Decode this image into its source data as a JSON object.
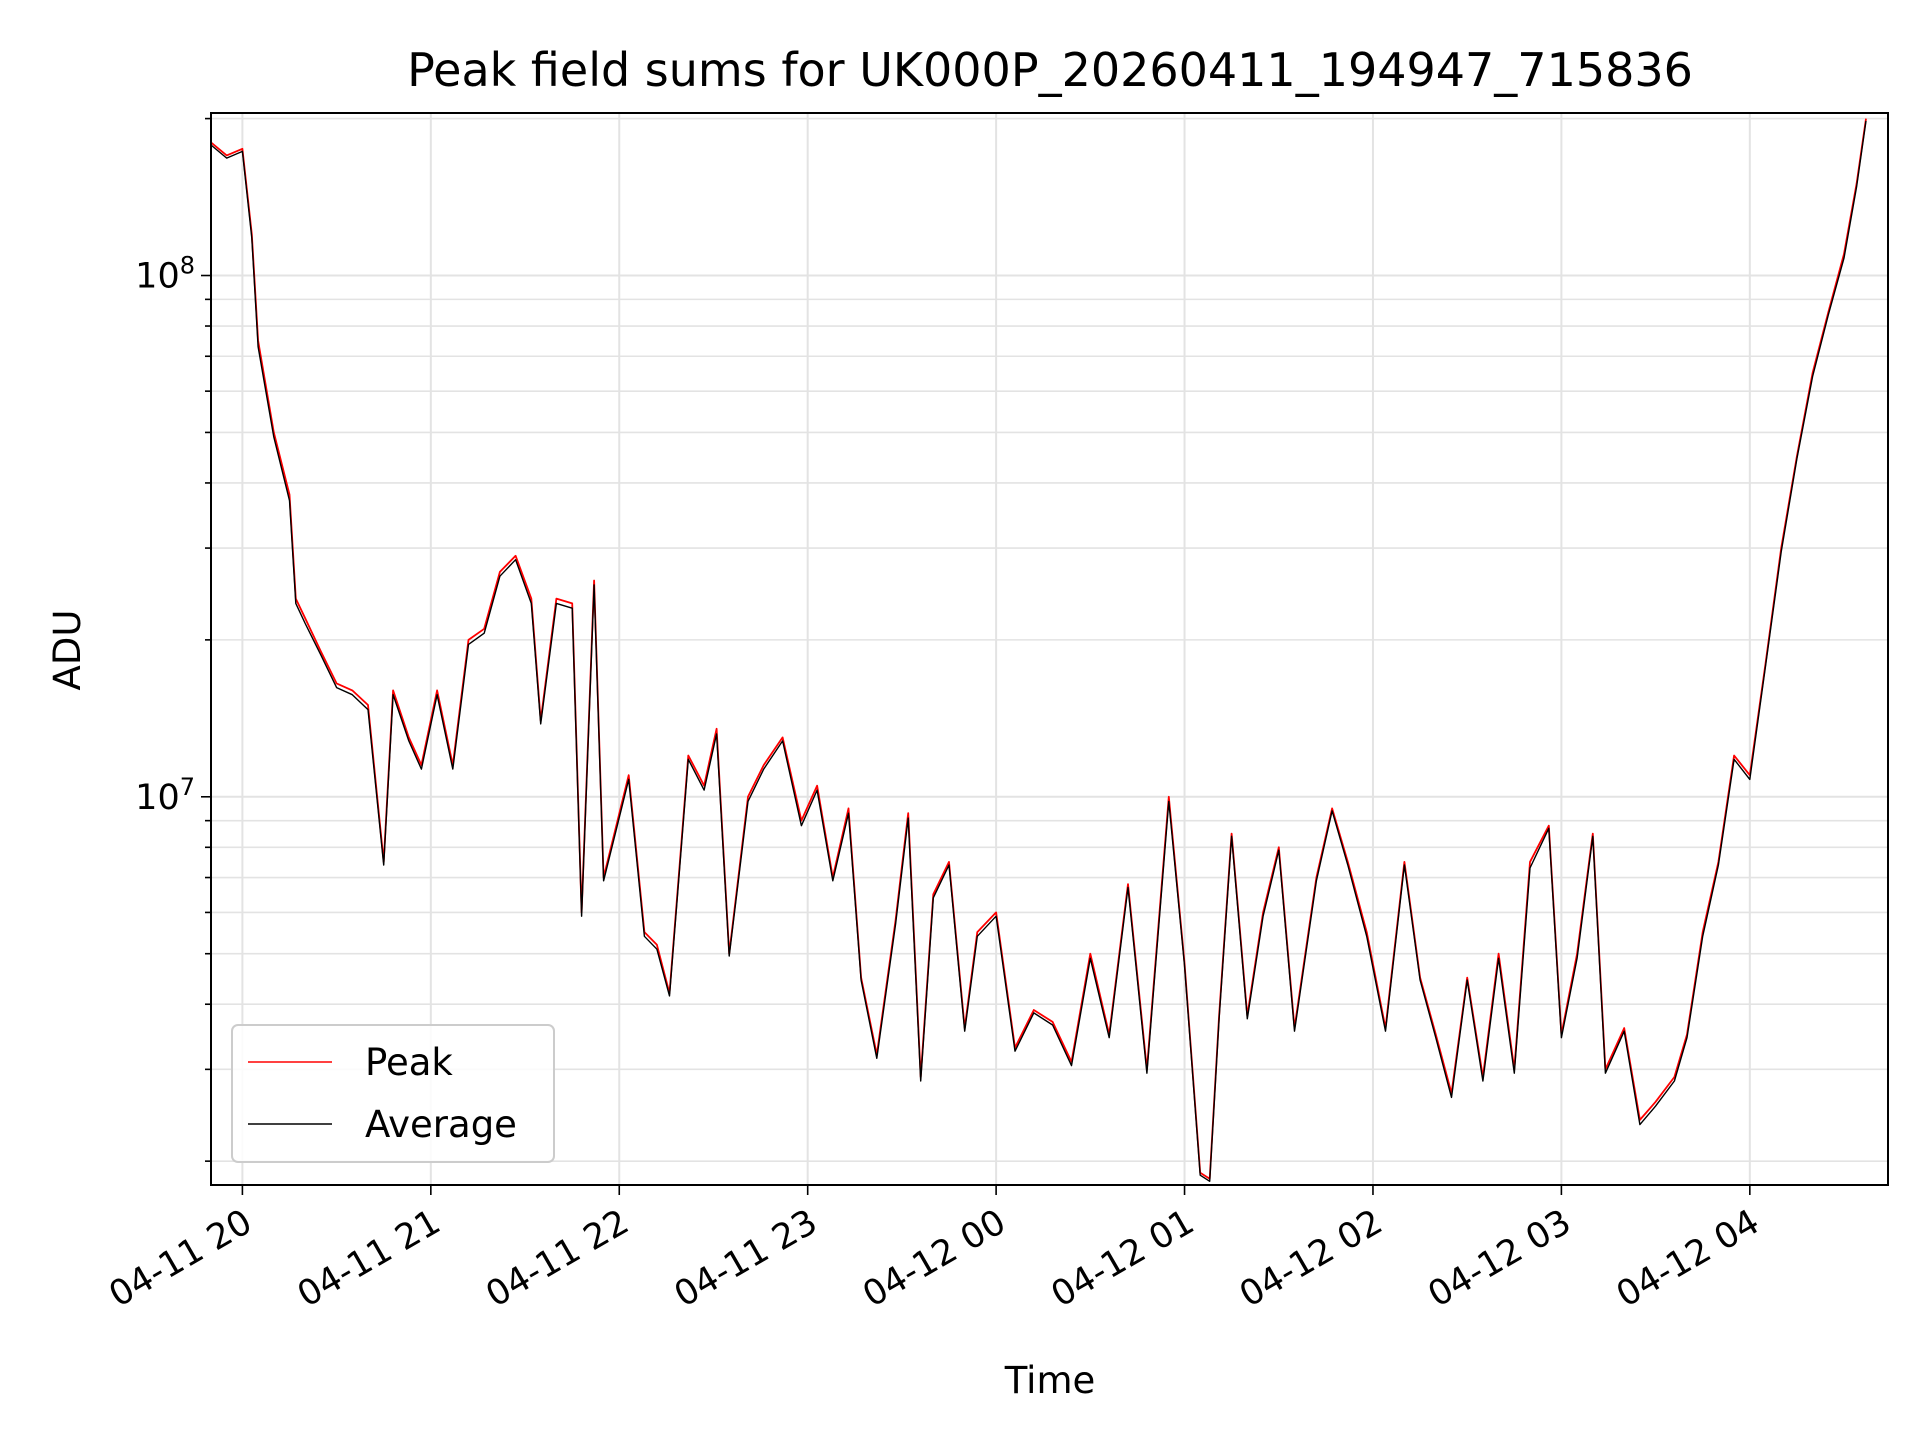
{
  "chart_data": {
    "type": "line",
    "title": "Peak field sums for UK000P_20260411_194947_715836",
    "xlabel": "Time",
    "ylabel": "ADU",
    "yscale": "log",
    "ylim": [
      1800000,
      205000000
    ],
    "xlim": [
      "2026-04-11 19:50",
      "2026-04-12 04:44"
    ],
    "grid": true,
    "legend": "lower-left",
    "x_tick_labels": [
      "04-11 20",
      "04-11 21",
      "04-11 22",
      "04-11 23",
      "04-12 00",
      "04-12 01",
      "04-12 02",
      "04-12 03",
      "04-12 04"
    ],
    "x_tick_times": [
      "2026-04-11 20:00",
      "2026-04-11 21:00",
      "2026-04-11 22:00",
      "2026-04-11 23:00",
      "2026-04-12 00:00",
      "2026-04-12 01:00",
      "2026-04-12 02:00",
      "2026-04-12 03:00",
      "2026-04-12 04:00"
    ],
    "y_tick_labels": [
      {
        "base": "10",
        "exp": "7",
        "value": 10000000
      },
      {
        "base": "10",
        "exp": "8",
        "value": 100000000
      }
    ],
    "series": [
      {
        "name": "Peak",
        "color": "#ff0000",
        "points": [
          [
            "2026-04-11 19:50",
            180000000.0
          ],
          [
            "2026-04-11 19:55",
            170000000.0
          ],
          [
            "2026-04-11 20:00",
            175000000.0
          ],
          [
            "2026-04-11 20:03",
            120000000.0
          ],
          [
            "2026-04-11 20:05",
            75000000.0
          ],
          [
            "2026-04-11 20:10",
            50000000.0
          ],
          [
            "2026-04-11 20:15",
            38000000.0
          ],
          [
            "2026-04-11 20:17",
            24000000.0
          ],
          [
            "2026-04-11 20:20",
            22000000.0
          ],
          [
            "2026-04-11 20:25",
            19000000.0
          ],
          [
            "2026-04-11 20:30",
            16500000.0
          ],
          [
            "2026-04-11 20:35",
            16000000.0
          ],
          [
            "2026-04-11 20:40",
            15000000.0
          ],
          [
            "2026-04-11 20:45",
            7500000.0
          ],
          [
            "2026-04-11 20:48",
            16000000.0
          ],
          [
            "2026-04-11 20:53",
            13000000.0
          ],
          [
            "2026-04-11 20:57",
            11500000.0
          ],
          [
            "2026-04-11 21:02",
            16000000.0
          ],
          [
            "2026-04-11 21:07",
            11500000.0
          ],
          [
            "2026-04-11 21:12",
            20000000.0
          ],
          [
            "2026-04-11 21:17",
            21000000.0
          ],
          [
            "2026-04-11 21:22",
            27000000.0
          ],
          [
            "2026-04-11 21:27",
            29000000.0
          ],
          [
            "2026-04-11 21:32",
            24000000.0
          ],
          [
            "2026-04-11 21:35",
            14000000.0
          ],
          [
            "2026-04-11 21:40",
            24000000.0
          ],
          [
            "2026-04-11 21:45",
            23500000.0
          ],
          [
            "2026-04-11 21:48",
            6000000.0
          ],
          [
            "2026-04-11 21:52",
            26000000.0
          ],
          [
            "2026-04-11 21:55",
            7000000.0
          ],
          [
            "2026-04-11 22:03",
            11000000.0
          ],
          [
            "2026-04-11 22:08",
            5500000.0
          ],
          [
            "2026-04-11 22:12",
            5200000.0
          ],
          [
            "2026-04-11 22:16",
            4200000.0
          ],
          [
            "2026-04-11 22:22",
            12000000.0
          ],
          [
            "2026-04-11 22:27",
            10500000.0
          ],
          [
            "2026-04-11 22:31",
            13500000.0
          ],
          [
            "2026-04-11 22:35",
            5000000.0
          ],
          [
            "2026-04-11 22:41",
            10000000.0
          ],
          [
            "2026-04-11 22:46",
            11500000.0
          ],
          [
            "2026-04-11 22:52",
            13000000.0
          ],
          [
            "2026-04-11 22:58",
            9000000.0
          ],
          [
            "2026-04-11 23:03",
            10500000.0
          ],
          [
            "2026-04-11 23:08",
            7000000.0
          ],
          [
            "2026-04-11 23:13",
            9500000.0
          ],
          [
            "2026-04-11 23:17",
            4500000.0
          ],
          [
            "2026-04-11 23:22",
            3200000.0
          ],
          [
            "2026-04-11 23:28",
            5800000.0
          ],
          [
            "2026-04-11 23:32",
            9300000.0
          ],
          [
            "2026-04-11 23:36",
            2900000.0
          ],
          [
            "2026-04-11 23:40",
            6500000.0
          ],
          [
            "2026-04-11 23:45",
            7500000.0
          ],
          [
            "2026-04-11 23:50",
            3600000.0
          ],
          [
            "2026-04-11 23:54",
            5500000.0
          ],
          [
            "2026-04-12 00:00",
            6000000.0
          ],
          [
            "2026-04-12 00:06",
            3300000.0
          ],
          [
            "2026-04-12 00:12",
            3900000.0
          ],
          [
            "2026-04-12 00:18",
            3700000.0
          ],
          [
            "2026-04-12 00:24",
            3100000.0
          ],
          [
            "2026-04-12 00:30",
            5000000.0
          ],
          [
            "2026-04-12 00:36",
            3500000.0
          ],
          [
            "2026-04-12 00:42",
            6800000.0
          ],
          [
            "2026-04-12 00:48",
            3000000.0
          ],
          [
            "2026-04-12 00:55",
            10000000.0
          ],
          [
            "2026-04-12 01:00",
            4800000.0
          ],
          [
            "2026-04-12 01:05",
            1900000.0
          ],
          [
            "2026-04-12 01:08",
            1850000.0
          ],
          [
            "2026-04-12 01:11",
            3800000.0
          ],
          [
            "2026-04-12 01:15",
            8500000.0
          ],
          [
            "2026-04-12 01:20",
            3800000.0
          ],
          [
            "2026-04-12 01:25",
            6000000.0
          ],
          [
            "2026-04-12 01:30",
            8000000.0
          ],
          [
            "2026-04-12 01:35",
            3600000.0
          ],
          [
            "2026-04-12 01:42",
            7000000.0
          ],
          [
            "2026-04-12 01:47",
            9500000.0
          ],
          [
            "2026-04-12 01:52",
            7500000.0
          ],
          [
            "2026-04-12 01:58",
            5500000.0
          ],
          [
            "2026-04-12 02:04",
            3600000.0
          ],
          [
            "2026-04-12 02:10",
            7500000.0
          ],
          [
            "2026-04-12 02:15",
            4500000.0
          ],
          [
            "2026-04-12 02:20",
            3500000.0
          ],
          [
            "2026-04-12 02:25",
            2700000.0
          ],
          [
            "2026-04-12 02:30",
            4500000.0
          ],
          [
            "2026-04-12 02:35",
            2900000.0
          ],
          [
            "2026-04-12 02:40",
            5000000.0
          ],
          [
            "2026-04-12 02:45",
            3000000.0
          ],
          [
            "2026-04-12 02:50",
            7500000.0
          ],
          [
            "2026-04-12 02:56",
            8800000.0
          ],
          [
            "2026-04-12 03:00",
            3500000.0
          ],
          [
            "2026-04-12 03:05",
            5000000.0
          ],
          [
            "2026-04-12 03:10",
            8500000.0
          ],
          [
            "2026-04-12 03:14",
            3000000.0
          ],
          [
            "2026-04-12 03:20",
            3600000.0
          ],
          [
            "2026-04-12 03:25",
            2400000.0
          ],
          [
            "2026-04-12 03:30",
            2600000.0
          ],
          [
            "2026-04-12 03:36",
            2900000.0
          ],
          [
            "2026-04-12 03:40",
            3500000.0
          ],
          [
            "2026-04-12 03:45",
            5500000.0
          ],
          [
            "2026-04-12 03:50",
            7500000.0
          ],
          [
            "2026-04-12 03:55",
            12000000.0
          ],
          [
            "2026-04-12 04:00",
            11000000.0
          ],
          [
            "2026-04-12 04:05",
            18000000.0
          ],
          [
            "2026-04-12 04:10",
            30000000.0
          ],
          [
            "2026-04-12 04:15",
            45000000.0
          ],
          [
            "2026-04-12 04:20",
            65000000.0
          ],
          [
            "2026-04-12 04:25",
            85000000.0
          ],
          [
            "2026-04-12 04:30",
            110000000.0
          ],
          [
            "2026-04-12 04:34",
            150000000.0
          ],
          [
            "2026-04-12 04:37",
            200000000.0
          ]
        ]
      },
      {
        "name": "Average",
        "color": "#000000",
        "points": [
          [
            "2026-04-11 19:50",
            178000000.0
          ],
          [
            "2026-04-11 19:55",
            168000000.0
          ],
          [
            "2026-04-11 20:00",
            173000000.0
          ],
          [
            "2026-04-11 20:03",
            118000000.0
          ],
          [
            "2026-04-11 20:05",
            73000000.0
          ],
          [
            "2026-04-11 20:10",
            49000000.0
          ],
          [
            "2026-04-11 20:15",
            37000000.0
          ],
          [
            "2026-04-11 20:17",
            23500000.0
          ],
          [
            "2026-04-11 20:20",
            21500000.0
          ],
          [
            "2026-04-11 20:25",
            18700000.0
          ],
          [
            "2026-04-11 20:30",
            16200000.0
          ],
          [
            "2026-04-11 20:35",
            15700000.0
          ],
          [
            "2026-04-11 20:40",
            14700000.0
          ],
          [
            "2026-04-11 20:45",
            7400000.0
          ],
          [
            "2026-04-11 20:48",
            15700000.0
          ],
          [
            "2026-04-11 20:53",
            12800000.0
          ],
          [
            "2026-04-11 20:57",
            11300000.0
          ],
          [
            "2026-04-11 21:02",
            15700000.0
          ],
          [
            "2026-04-11 21:07",
            11300000.0
          ],
          [
            "2026-04-11 21:12",
            19600000.0
          ],
          [
            "2026-04-11 21:17",
            20600000.0
          ],
          [
            "2026-04-11 21:22",
            26500000.0
          ],
          [
            "2026-04-11 21:27",
            28500000.0
          ],
          [
            "2026-04-11 21:32",
            23500000.0
          ],
          [
            "2026-04-11 21:35",
            13800000.0
          ],
          [
            "2026-04-11 21:40",
            23500000.0
          ],
          [
            "2026-04-11 21:45",
            23000000.0
          ],
          [
            "2026-04-11 21:48",
            5900000.0
          ],
          [
            "2026-04-11 21:52",
            25500000.0
          ],
          [
            "2026-04-11 21:55",
            6900000.0
          ],
          [
            "2026-04-11 22:03",
            10800000.0
          ],
          [
            "2026-04-11 22:08",
            5400000.0
          ],
          [
            "2026-04-11 22:12",
            5100000.0
          ],
          [
            "2026-04-11 22:16",
            4150000.0
          ],
          [
            "2026-04-11 22:22",
            11800000.0
          ],
          [
            "2026-04-11 22:27",
            10300000.0
          ],
          [
            "2026-04-11 22:31",
            13200000.0
          ],
          [
            "2026-04-11 22:35",
            4950000.0
          ],
          [
            "2026-04-11 22:41",
            9800000.0
          ],
          [
            "2026-04-11 22:46",
            11300000.0
          ],
          [
            "2026-04-11 22:52",
            12800000.0
          ],
          [
            "2026-04-11 22:58",
            8800000.0
          ],
          [
            "2026-04-11 23:03",
            10300000.0
          ],
          [
            "2026-04-11 23:08",
            6900000.0
          ],
          [
            "2026-04-11 23:13",
            9300000.0
          ],
          [
            "2026-04-11 23:17",
            4450000.0
          ],
          [
            "2026-04-11 23:22",
            3150000.0
          ],
          [
            "2026-04-11 23:28",
            5700000.0
          ],
          [
            "2026-04-11 23:32",
            9100000.0
          ],
          [
            "2026-04-11 23:36",
            2850000.0
          ],
          [
            "2026-04-11 23:40",
            6400000.0
          ],
          [
            "2026-04-11 23:45",
            7400000.0
          ],
          [
            "2026-04-11 23:50",
            3550000.0
          ],
          [
            "2026-04-11 23:54",
            5400000.0
          ],
          [
            "2026-04-12 00:00",
            5900000.0
          ],
          [
            "2026-04-12 00:06",
            3250000.0
          ],
          [
            "2026-04-12 00:12",
            3850000.0
          ],
          [
            "2026-04-12 00:18",
            3650000.0
          ],
          [
            "2026-04-12 00:24",
            3050000.0
          ],
          [
            "2026-04-12 00:30",
            4900000.0
          ],
          [
            "2026-04-12 00:36",
            3450000.0
          ],
          [
            "2026-04-12 00:42",
            6700000.0
          ],
          [
            "2026-04-12 00:48",
            2950000.0
          ],
          [
            "2026-04-12 00:55",
            9800000.0
          ],
          [
            "2026-04-12 01:00",
            4750000.0
          ],
          [
            "2026-04-12 01:05",
            1880000.0
          ],
          [
            "2026-04-12 01:08",
            1830000.0
          ],
          [
            "2026-04-12 01:11",
            3750000.0
          ],
          [
            "2026-04-12 01:15",
            8400000.0
          ],
          [
            "2026-04-12 01:20",
            3750000.0
          ],
          [
            "2026-04-12 01:25",
            5900000.0
          ],
          [
            "2026-04-12 01:30",
            7900000.0
          ],
          [
            "2026-04-12 01:35",
            3550000.0
          ],
          [
            "2026-04-12 01:42",
            6900000.0
          ],
          [
            "2026-04-12 01:47",
            9400000.0
          ],
          [
            "2026-04-12 01:52",
            7400000.0
          ],
          [
            "2026-04-12 01:58",
            5400000.0
          ],
          [
            "2026-04-12 02:04",
            3550000.0
          ],
          [
            "2026-04-12 02:10",
            7400000.0
          ],
          [
            "2026-04-12 02:15",
            4450000.0
          ],
          [
            "2026-04-12 02:20",
            3450000.0
          ],
          [
            "2026-04-12 02:25",
            2650000.0
          ],
          [
            "2026-04-12 02:30",
            4450000.0
          ],
          [
            "2026-04-12 02:35",
            2850000.0
          ],
          [
            "2026-04-12 02:40",
            4900000.0
          ],
          [
            "2026-04-12 02:45",
            2950000.0
          ],
          [
            "2026-04-12 02:50",
            7300000.0
          ],
          [
            "2026-04-12 02:56",
            8700000.0
          ],
          [
            "2026-04-12 03:00",
            3450000.0
          ],
          [
            "2026-04-12 03:05",
            4900000.0
          ],
          [
            "2026-04-12 03:10",
            8400000.0
          ],
          [
            "2026-04-12 03:14",
            2950000.0
          ],
          [
            "2026-04-12 03:20",
            3550000.0
          ],
          [
            "2026-04-12 03:25",
            2350000.0
          ],
          [
            "2026-04-12 03:30",
            2550000.0
          ],
          [
            "2026-04-12 03:36",
            2850000.0
          ],
          [
            "2026-04-12 03:40",
            3450000.0
          ],
          [
            "2026-04-12 03:45",
            5400000.0
          ],
          [
            "2026-04-12 03:50",
            7400000.0
          ],
          [
            "2026-04-12 03:55",
            11800000.0
          ],
          [
            "2026-04-12 04:00",
            10800000.0
          ],
          [
            "2026-04-12 04:05",
            17800000.0
          ],
          [
            "2026-04-12 04:10",
            29500000.0
          ],
          [
            "2026-04-12 04:15",
            44500000.0
          ],
          [
            "2026-04-12 04:20",
            64000000.0
          ],
          [
            "2026-04-12 04:25",
            84000000.0
          ],
          [
            "2026-04-12 04:30",
            108000000.0
          ],
          [
            "2026-04-12 04:34",
            148000000.0
          ],
          [
            "2026-04-12 04:37",
            198000000.0
          ]
        ]
      }
    ]
  }
}
